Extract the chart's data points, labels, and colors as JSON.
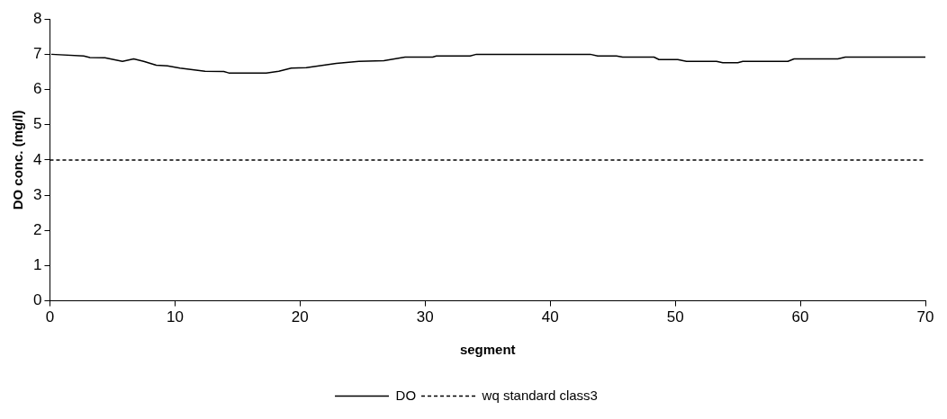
{
  "chart_data": {
    "type": "line",
    "xlabel": "segment",
    "ylabel": "DO conc. (mg/l)",
    "xlim": [
      0,
      70
    ],
    "xticks": [
      0,
      10,
      20,
      30,
      40,
      50,
      60,
      70
    ],
    "ylim": [
      0,
      8
    ],
    "yticks": [
      0,
      1,
      2,
      3,
      4,
      5,
      6,
      7,
      8
    ],
    "grid": false,
    "legend": "bottom",
    "marker": "none",
    "series": [
      {
        "name": "DO",
        "color": "#000000",
        "line_style": "solid",
        "x": [
          0.1,
          2.7,
          3.2,
          4.4,
          5.8,
          6.7,
          7.5,
          8.5,
          9.4,
          10.4,
          12.4,
          13.9,
          14.3,
          17.3,
          18.3,
          19.3,
          20.5,
          22.9,
          24.7,
          26.7,
          28.4,
          30.6,
          30.9,
          33.6,
          34.1,
          43.2,
          43.8,
          45.3,
          45.8,
          48.3,
          48.7,
          50.2,
          50.9,
          53.3,
          53.8,
          55.0,
          55.4,
          59.0,
          59.5,
          63.0,
          63.6,
          70.0
        ],
        "values": [
          7.0,
          6.95,
          6.91,
          6.9,
          6.8,
          6.87,
          6.8,
          6.69,
          6.67,
          6.61,
          6.52,
          6.51,
          6.47,
          6.47,
          6.52,
          6.61,
          6.62,
          6.74,
          6.8,
          6.82,
          6.92,
          6.92,
          6.95,
          6.95,
          7.0,
          7.0,
          6.95,
          6.95,
          6.92,
          6.92,
          6.85,
          6.85,
          6.8,
          6.8,
          6.76,
          6.76,
          6.8,
          6.8,
          6.87,
          6.87,
          6.92,
          6.92
        ]
      },
      {
        "name": "wq standard class3",
        "color": "#000000",
        "line_style": "dashed",
        "x": [
          0,
          70
        ],
        "values": [
          4,
          4
        ]
      }
    ]
  }
}
